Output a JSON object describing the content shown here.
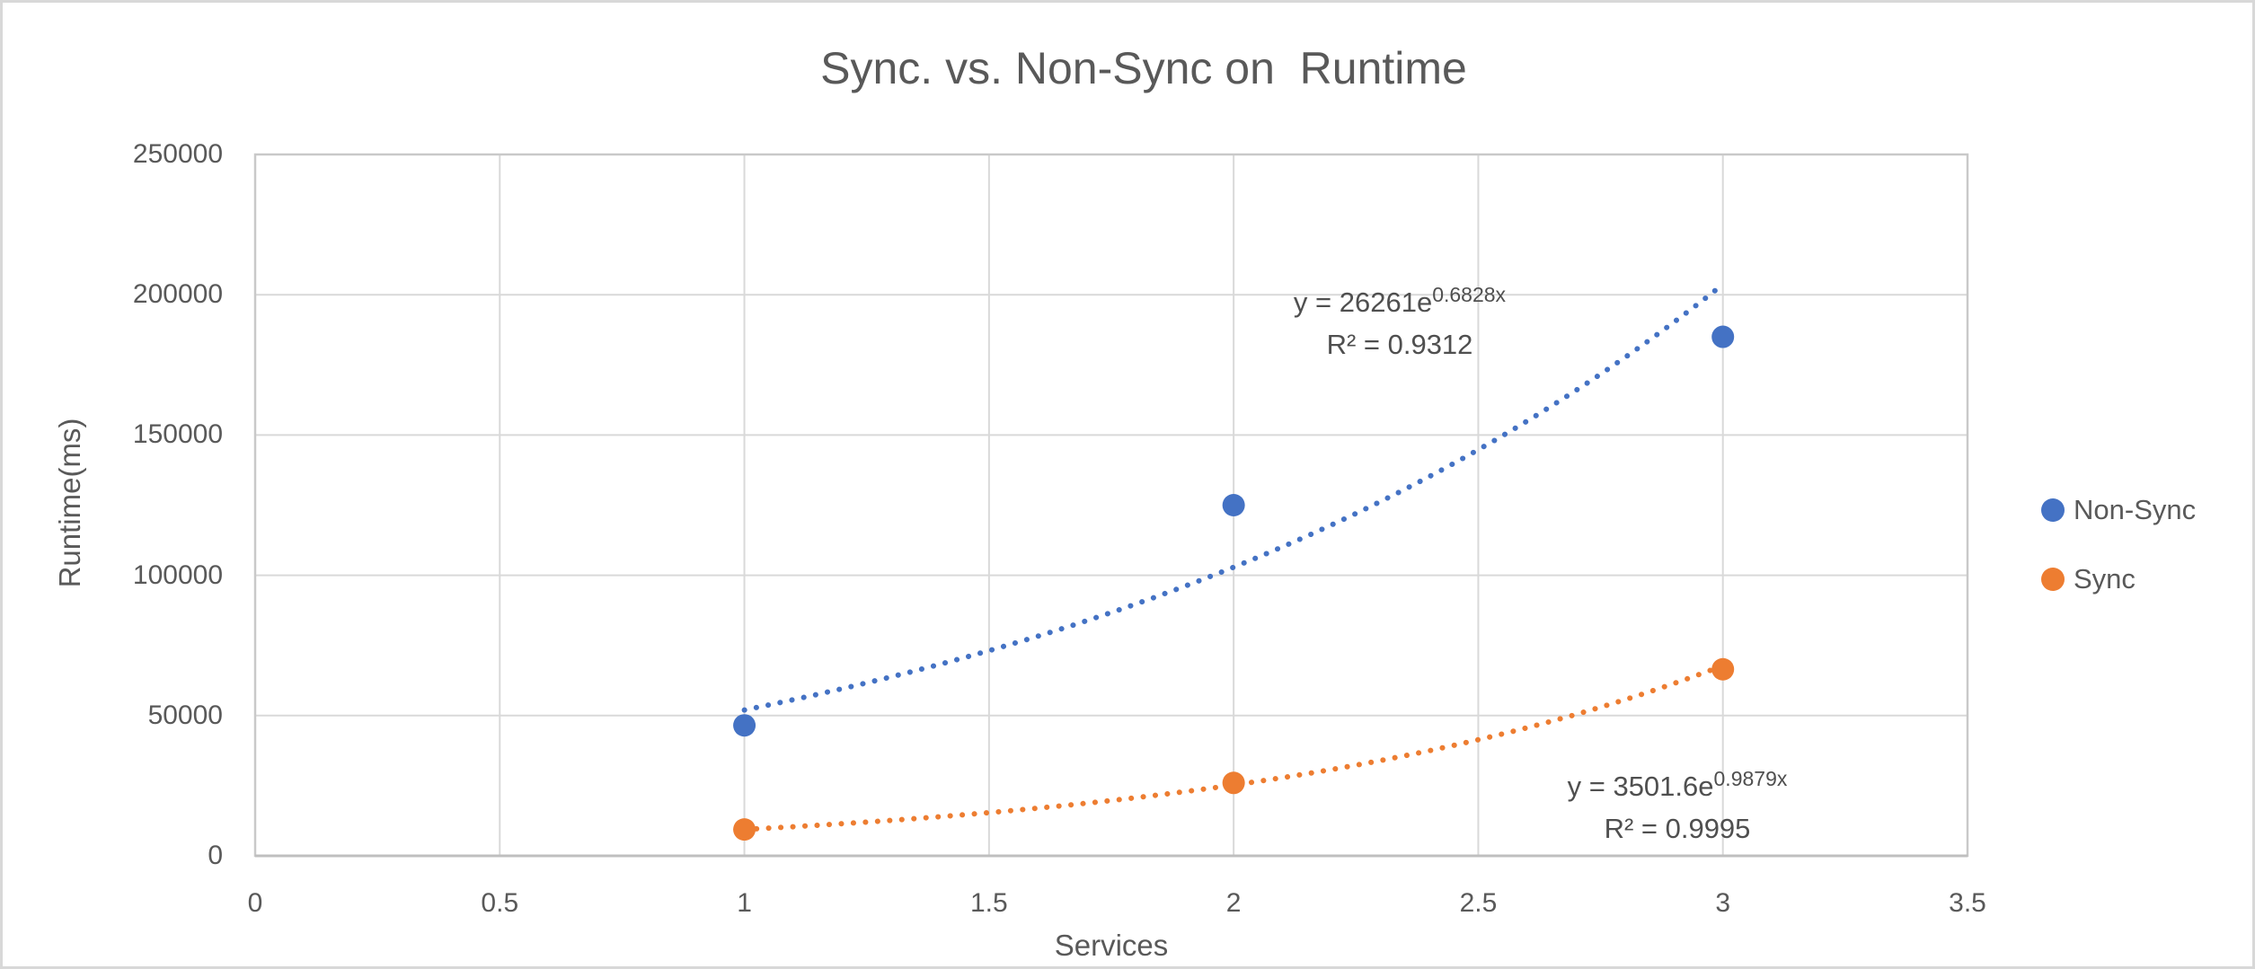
{
  "window": {
    "background": "#FFFFFF",
    "frame_border_color": "#D8D8D8"
  },
  "chart_data": {
    "type": "scatter",
    "title": "Sync. vs. Non-Sync on  Runtime",
    "xlabel": "Services",
    "ylabel": "Runtime(ms)",
    "xlim": [
      0,
      3.5
    ],
    "ylim": [
      0,
      250000
    ],
    "x_tick_labels": [
      "0",
      "0.5",
      "1",
      "1.5",
      "2",
      "2.5",
      "3",
      "3.5"
    ],
    "y_tick_labels": [
      "0",
      "50000",
      "100000",
      "150000",
      "200000",
      "250000"
    ],
    "grid": true,
    "legend_position": "right",
    "colors": {
      "gridline": "#D9D9D9",
      "plot_border": "#C9C9C9",
      "axis_line": "#BFBFBF",
      "text": "#595959",
      "annotation_text": "#4F4F4F"
    },
    "series": [
      {
        "name": "Non-Sync",
        "color": "#4472C4",
        "points": [
          {
            "x": 1,
            "y": 46500
          },
          {
            "x": 2,
            "y": 125000
          },
          {
            "x": 3,
            "y": 185000
          }
        ],
        "trendline": {
          "type": "exponential",
          "coefficient": 26261,
          "exponent": 0.6828,
          "x_start": 1,
          "x_end": 3,
          "equation_base": "y = 26261e",
          "equation_exponent": "0.6828x",
          "r_squared": "R² = 0.9312"
        }
      },
      {
        "name": "Sync",
        "color": "#ED7D31",
        "points": [
          {
            "x": 1,
            "y": 9400
          },
          {
            "x": 2,
            "y": 26000
          },
          {
            "x": 3,
            "y": 66500
          }
        ],
        "trendline": {
          "type": "exponential",
          "coefficient": 3501.6,
          "exponent": 0.9879,
          "x_start": 1,
          "x_end": 3,
          "equation_base": "y = 3501.6e",
          "equation_exponent": "0.9879x",
          "r_squared": "R² = 0.9995"
        }
      }
    ]
  }
}
